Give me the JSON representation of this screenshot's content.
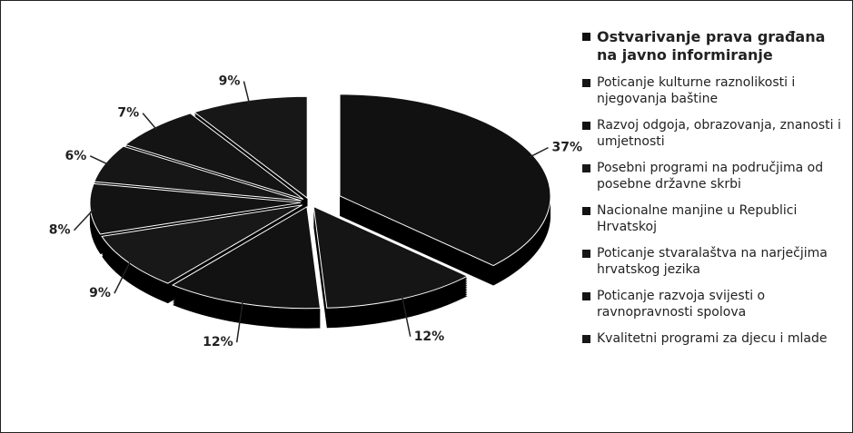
{
  "chart_data": {
    "type": "pie",
    "categories": [
      "Ostvarivanje prava građana na javno informiranje",
      "Poticanje kulturne raznolikosti i njegovanja baštine",
      "Razvoj odgoja, obrazovanja, znanosti i umjetnosti",
      "Posebni programi na područjima od posebne državne skrbi",
      "Nacionalne manjine u Republici Hrvatskoj",
      "Poticanje stvaralaštva na narječjima hrvatskog jezika",
      "Poticanje razvoja svijesti o ravnopravnosti spolova",
      "Kvalitetni programi za djecu i mlade"
    ],
    "values": [
      37,
      12,
      12,
      9,
      8,
      6,
      7,
      9
    ],
    "value_labels": [
      "37%",
      "12%",
      "12%",
      "9%",
      "8%",
      "6%",
      "7%",
      "9%"
    ],
    "colors": [
      "#111111",
      "#151515",
      "#121212",
      "#181818",
      "#131313",
      "#161616",
      "#141414",
      "#171717"
    ]
  }
}
